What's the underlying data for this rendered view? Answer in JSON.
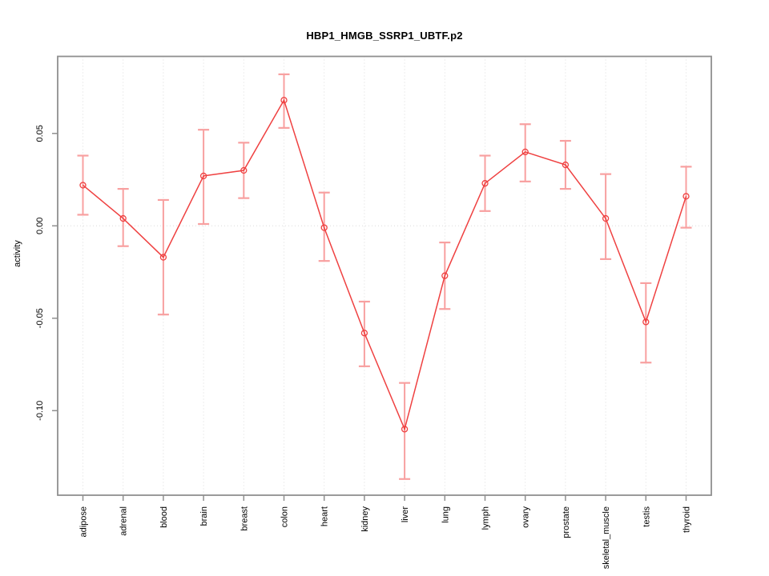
{
  "figure": {
    "background": "#ffffff"
  },
  "chart_data": {
    "type": "line",
    "title": "HBP1_HMGB_SSRP1_UBTF.p2",
    "xlabel": "",
    "ylabel": "activity",
    "legend_position": "none",
    "grid": "vertical dotted gridline per category, dotted horizontal line at y=0",
    "categories": [
      "adipose",
      "adrenal",
      "blood",
      "brain",
      "breast",
      "colon",
      "heart",
      "kidney",
      "liver",
      "lung",
      "lymph",
      "ovary",
      "prostate",
      "skeletal_muscle",
      "testis",
      "thyroid"
    ],
    "series": [
      {
        "name": "activity",
        "marker": "open-circle",
        "values": [
          0.022,
          0.004,
          -0.017,
          0.027,
          0.03,
          0.068,
          -0.001,
          -0.058,
          -0.11,
          -0.027,
          0.023,
          0.04,
          0.033,
          0.004,
          -0.052,
          0.016
        ],
        "upper": [
          0.038,
          0.02,
          0.014,
          0.052,
          0.045,
          0.082,
          0.018,
          -0.041,
          -0.085,
          -0.009,
          0.038,
          0.055,
          0.046,
          0.028,
          -0.031,
          0.032
        ],
        "lower": [
          0.006,
          -0.011,
          -0.048,
          0.001,
          0.015,
          0.053,
          -0.019,
          -0.076,
          -0.137,
          -0.045,
          0.008,
          0.024,
          0.02,
          -0.018,
          -0.074,
          -0.001
        ]
      }
    ],
    "y_ticks": [
      0.05,
      0.0,
      -0.05,
      -0.1
    ],
    "y_tick_labels": [
      "0.05",
      "0.00",
      "-0.05",
      "-0.10"
    ],
    "ylim": [
      -0.146,
      0.092
    ],
    "colors": {
      "line": "#ef4141",
      "marker": "#ef4141",
      "error_bar": "#f8a0a0",
      "grid": "#dcdcdc",
      "box": "#8f8f8f",
      "text": "#000000"
    }
  }
}
